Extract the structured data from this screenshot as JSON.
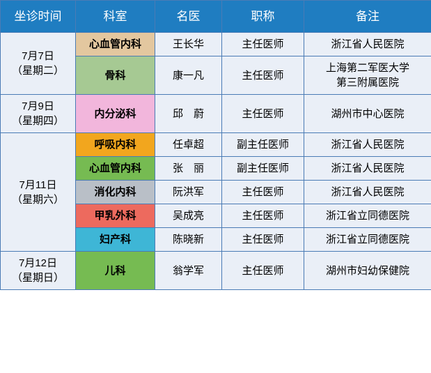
{
  "header": {
    "bg": "#1f7dc1",
    "cols": [
      {
        "label": "坐诊时间",
        "width": 108
      },
      {
        "label": "科室",
        "width": 114
      },
      {
        "label": "名医",
        "width": 96
      },
      {
        "label": "职称",
        "width": 118
      },
      {
        "label": "备注",
        "width": 183
      }
    ]
  },
  "time_bg": "#eaeff7",
  "groups": [
    {
      "time": "7月7日\n（星期二）",
      "rows": [
        {
          "dept": "心血管内科",
          "dept_bg": "#e3c79f",
          "doctor": "王长华",
          "title": "主任医师",
          "remark": "浙江省人民医院"
        },
        {
          "dept": "骨科",
          "dept_bg": "#a6c993",
          "doctor": "康一凡",
          "title": "主任医师",
          "remark": "上海第二军医大学\n第三附属医院"
        }
      ]
    },
    {
      "time": "7月9日\n（星期四）",
      "rows": [
        {
          "dept": "内分泌科",
          "dept_bg": "#f2b6dc",
          "doctor": "邱　蔚",
          "title": "主任医师",
          "remark": "湖州市中心医院"
        }
      ]
    },
    {
      "time": "7月11日\n（星期六）",
      "rows": [
        {
          "dept": "呼吸内科",
          "dept_bg": "#f2a61e",
          "doctor": "任卓超",
          "title": "副主任医师",
          "remark": "浙江省人民医院"
        },
        {
          "dept": "心血管内科",
          "dept_bg": "#76bb52",
          "doctor": "张　丽",
          "title": "副主任医师",
          "remark": "浙江省人民医院"
        },
        {
          "dept": "消化内科",
          "dept_bg": "#b9bfc7",
          "doctor": "阮洪军",
          "title": "主任医师",
          "remark": "浙江省人民医院"
        },
        {
          "dept": "甲乳外科",
          "dept_bg": "#ed6a5e",
          "doctor": "吴成亮",
          "title": "主任医师",
          "remark": "浙江省立同德医院"
        },
        {
          "dept": "妇产科",
          "dept_bg": "#3eb6d6",
          "doctor": "陈晓新",
          "title": "主任医师",
          "remark": "浙江省立同德医院"
        }
      ]
    },
    {
      "time": "7月12日\n（星期日）",
      "rows": [
        {
          "dept": "儿科",
          "dept_bg": "#76bb52",
          "doctor": "翁学军",
          "title": "主任医师",
          "remark": "湖州市妇幼保健院"
        }
      ]
    }
  ]
}
